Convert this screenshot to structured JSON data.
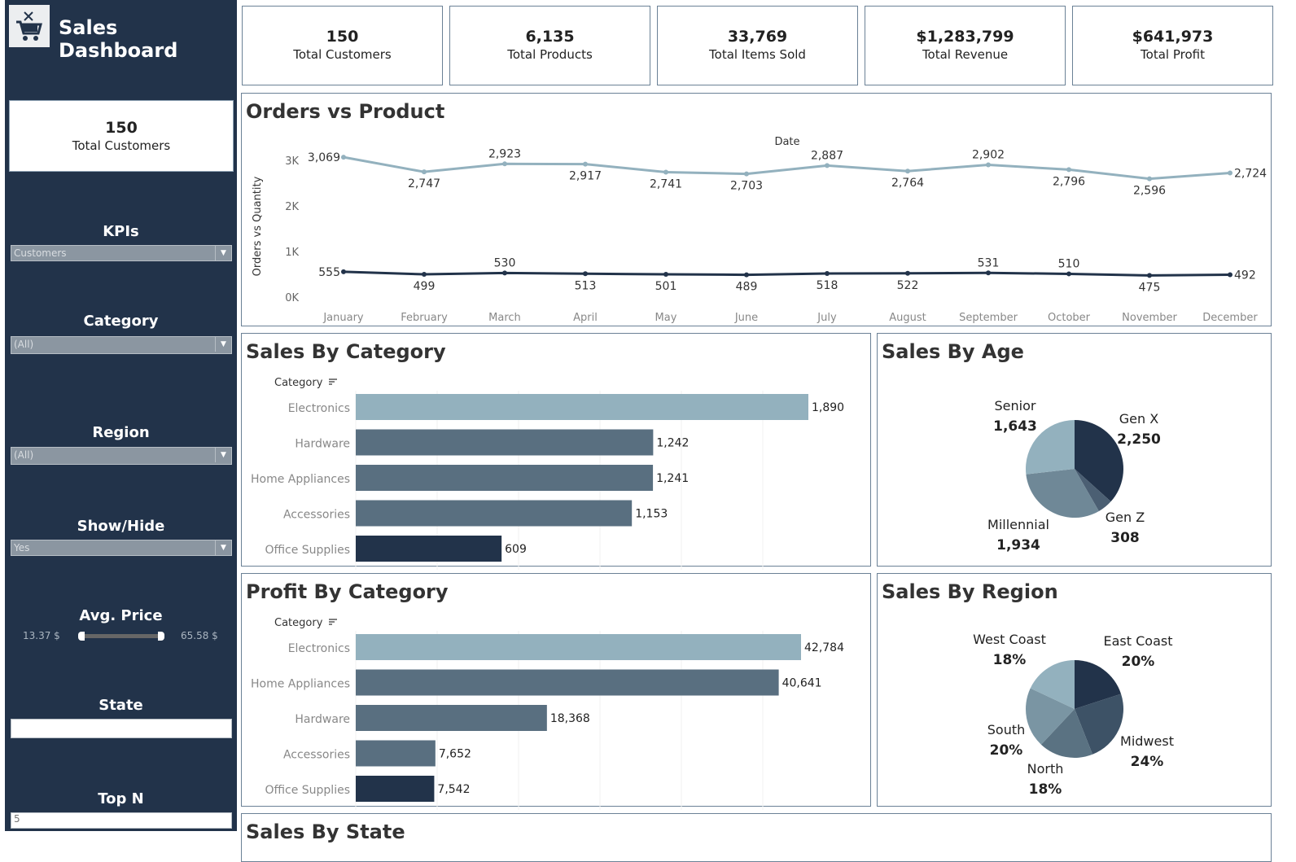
{
  "sidebar": {
    "title": "Sales Dashboard",
    "logo_icon": "shopping-cart-icon",
    "kpi": {
      "value": "150",
      "label": "Total Customers"
    },
    "filters": {
      "kpis": {
        "label": "KPIs",
        "value": "Customers"
      },
      "category": {
        "label": "Category",
        "value": "(All)"
      },
      "region": {
        "label": "Region",
        "value": "(All)"
      },
      "show_hide": {
        "label": "Show/Hide",
        "value": "Yes"
      },
      "avg_price": {
        "label": "Avg. Price",
        "min": "13.37 $",
        "max": "65.58 $"
      },
      "state": {
        "label": "State",
        "value": ""
      },
      "top_n": {
        "label": "Top N",
        "value": "5"
      }
    }
  },
  "kpis": [
    {
      "value": "150",
      "label": "Total Customers"
    },
    {
      "value": "6,135",
      "label": "Total Products"
    },
    {
      "value": "33,769",
      "label": "Total Items Sold"
    },
    {
      "value": "$1,283,799",
      "label": "Total Revenue"
    },
    {
      "value": "$641,973",
      "label": "Total Profit"
    }
  ],
  "colors": {
    "navy": "#22334a",
    "light": "#93b1be",
    "mid": "#596f80"
  },
  "panels": {
    "sales_by_state": "Sales By State"
  },
  "chart_data": [
    {
      "type": "line",
      "title": "Orders vs Product",
      "xlabel": "Date",
      "ylabel": "Orders vs Quantity",
      "ylim": [
        0,
        3000
      ],
      "yticks": [
        "0K",
        "1K",
        "2K",
        "3K"
      ],
      "categories": [
        "January",
        "February",
        "March",
        "April",
        "May",
        "June",
        "July",
        "August",
        "September",
        "October",
        "November",
        "December"
      ],
      "series": [
        {
          "values": [
            3069,
            2747,
            2923,
            2917,
            2741,
            2703,
            2887,
            2764,
            2902,
            2796,
            2596,
            2724
          ],
          "labels": [
            "3,069",
            "2,747",
            "2,923",
            "2,917",
            "2,741",
            "2,703",
            "2,887",
            "2,764",
            "2,902",
            "2,796",
            "2,596",
            "2,724"
          ],
          "color": "#93b1be"
        },
        {
          "values": [
            555,
            499,
            530,
            513,
            501,
            489,
            518,
            522,
            531,
            510,
            475,
            492
          ],
          "labels": [
            "555",
            "499",
            "530",
            "513",
            "501",
            "489",
            "518",
            "522",
            "531",
            "510",
            "475",
            "492"
          ],
          "color": "#22334a"
        }
      ]
    },
    {
      "type": "bar",
      "title": "Sales By Category",
      "axis_label": "Category",
      "categories": [
        "Electronics",
        "Hardware",
        "Home Appliances",
        "Accessories",
        "Office Supplies"
      ],
      "values": [
        1890,
        1242,
        1241,
        1153,
        609
      ],
      "labels": [
        "1,890",
        "1,242",
        "1,241",
        "1,153",
        "609"
      ]
    },
    {
      "type": "pie",
      "title": "Sales By Age",
      "categories": [
        "Gen X",
        "Gen Z",
        "Millennial",
        "Senior"
      ],
      "values": [
        2250,
        308,
        1934,
        1643
      ],
      "labels": [
        "2,250",
        "308",
        "1,934",
        "1,643"
      ],
      "colors": [
        "#22334a",
        "#4b5f73",
        "#6f8897",
        "#93b1be"
      ]
    },
    {
      "type": "bar",
      "title": "Profit By Category",
      "axis_label": "Category",
      "categories": [
        "Electronics",
        "Home Appliances",
        "Hardware",
        "Accessories",
        "Office Supplies"
      ],
      "values": [
        42784,
        40641,
        18368,
        7652,
        7542
      ],
      "labels": [
        "42,784",
        "40,641",
        "18,368",
        "7,652",
        "7,542"
      ]
    },
    {
      "type": "pie",
      "title": "Sales By Region",
      "categories": [
        "East Coast",
        "Midwest",
        "North",
        "South",
        "West Coast"
      ],
      "values": [
        20,
        24,
        18,
        20,
        18
      ],
      "labels": [
        "20%",
        "24%",
        "18%",
        "20%",
        "18%"
      ],
      "colors": [
        "#22334a",
        "#3d5266",
        "#5a7282",
        "#7a95a3",
        "#93b1be"
      ]
    }
  ]
}
